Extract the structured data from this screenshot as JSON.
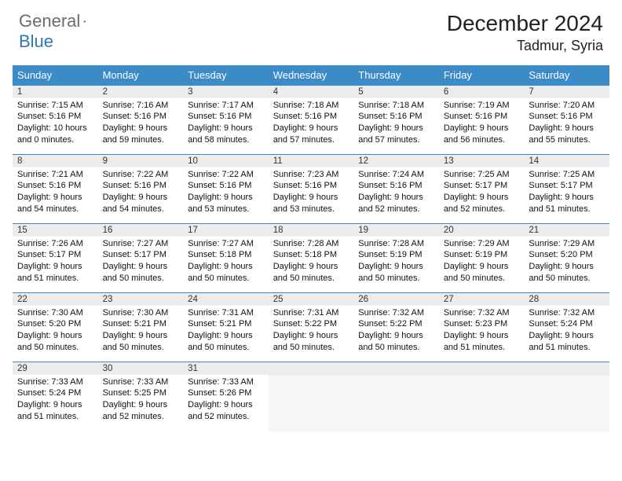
{
  "brand": {
    "general": "General",
    "blue": "Blue"
  },
  "title": "December 2024",
  "location": "Tadmur, Syria",
  "colors": {
    "header_bg": "#3b8bc9",
    "header_text": "#ffffff",
    "rule": "#3b8bc9",
    "daynum_bg": "#ececec",
    "logo_gray": "#6b6b6b",
    "logo_blue": "#2f77b5",
    "empty_bg": "#f6f6f6"
  },
  "weekdays": [
    "Sunday",
    "Monday",
    "Tuesday",
    "Wednesday",
    "Thursday",
    "Friday",
    "Saturday"
  ],
  "weeks": [
    [
      {
        "n": "1",
        "sunrise": "7:15 AM",
        "sunset": "5:16 PM",
        "dl": "10 hours and 0 minutes."
      },
      {
        "n": "2",
        "sunrise": "7:16 AM",
        "sunset": "5:16 PM",
        "dl": "9 hours and 59 minutes."
      },
      {
        "n": "3",
        "sunrise": "7:17 AM",
        "sunset": "5:16 PM",
        "dl": "9 hours and 58 minutes."
      },
      {
        "n": "4",
        "sunrise": "7:18 AM",
        "sunset": "5:16 PM",
        "dl": "9 hours and 57 minutes."
      },
      {
        "n": "5",
        "sunrise": "7:18 AM",
        "sunset": "5:16 PM",
        "dl": "9 hours and 57 minutes."
      },
      {
        "n": "6",
        "sunrise": "7:19 AM",
        "sunset": "5:16 PM",
        "dl": "9 hours and 56 minutes."
      },
      {
        "n": "7",
        "sunrise": "7:20 AM",
        "sunset": "5:16 PM",
        "dl": "9 hours and 55 minutes."
      }
    ],
    [
      {
        "n": "8",
        "sunrise": "7:21 AM",
        "sunset": "5:16 PM",
        "dl": "9 hours and 54 minutes."
      },
      {
        "n": "9",
        "sunrise": "7:22 AM",
        "sunset": "5:16 PM",
        "dl": "9 hours and 54 minutes."
      },
      {
        "n": "10",
        "sunrise": "7:22 AM",
        "sunset": "5:16 PM",
        "dl": "9 hours and 53 minutes."
      },
      {
        "n": "11",
        "sunrise": "7:23 AM",
        "sunset": "5:16 PM",
        "dl": "9 hours and 53 minutes."
      },
      {
        "n": "12",
        "sunrise": "7:24 AM",
        "sunset": "5:16 PM",
        "dl": "9 hours and 52 minutes."
      },
      {
        "n": "13",
        "sunrise": "7:25 AM",
        "sunset": "5:17 PM",
        "dl": "9 hours and 52 minutes."
      },
      {
        "n": "14",
        "sunrise": "7:25 AM",
        "sunset": "5:17 PM",
        "dl": "9 hours and 51 minutes."
      }
    ],
    [
      {
        "n": "15",
        "sunrise": "7:26 AM",
        "sunset": "5:17 PM",
        "dl": "9 hours and 51 minutes."
      },
      {
        "n": "16",
        "sunrise": "7:27 AM",
        "sunset": "5:17 PM",
        "dl": "9 hours and 50 minutes."
      },
      {
        "n": "17",
        "sunrise": "7:27 AM",
        "sunset": "5:18 PM",
        "dl": "9 hours and 50 minutes."
      },
      {
        "n": "18",
        "sunrise": "7:28 AM",
        "sunset": "5:18 PM",
        "dl": "9 hours and 50 minutes."
      },
      {
        "n": "19",
        "sunrise": "7:28 AM",
        "sunset": "5:19 PM",
        "dl": "9 hours and 50 minutes."
      },
      {
        "n": "20",
        "sunrise": "7:29 AM",
        "sunset": "5:19 PM",
        "dl": "9 hours and 50 minutes."
      },
      {
        "n": "21",
        "sunrise": "7:29 AM",
        "sunset": "5:20 PM",
        "dl": "9 hours and 50 minutes."
      }
    ],
    [
      {
        "n": "22",
        "sunrise": "7:30 AM",
        "sunset": "5:20 PM",
        "dl": "9 hours and 50 minutes."
      },
      {
        "n": "23",
        "sunrise": "7:30 AM",
        "sunset": "5:21 PM",
        "dl": "9 hours and 50 minutes."
      },
      {
        "n": "24",
        "sunrise": "7:31 AM",
        "sunset": "5:21 PM",
        "dl": "9 hours and 50 minutes."
      },
      {
        "n": "25",
        "sunrise": "7:31 AM",
        "sunset": "5:22 PM",
        "dl": "9 hours and 50 minutes."
      },
      {
        "n": "26",
        "sunrise": "7:32 AM",
        "sunset": "5:22 PM",
        "dl": "9 hours and 50 minutes."
      },
      {
        "n": "27",
        "sunrise": "7:32 AM",
        "sunset": "5:23 PM",
        "dl": "9 hours and 51 minutes."
      },
      {
        "n": "28",
        "sunrise": "7:32 AM",
        "sunset": "5:24 PM",
        "dl": "9 hours and 51 minutes."
      }
    ],
    [
      {
        "n": "29",
        "sunrise": "7:33 AM",
        "sunset": "5:24 PM",
        "dl": "9 hours and 51 minutes."
      },
      {
        "n": "30",
        "sunrise": "7:33 AM",
        "sunset": "5:25 PM",
        "dl": "9 hours and 52 minutes."
      },
      {
        "n": "31",
        "sunrise": "7:33 AM",
        "sunset": "5:26 PM",
        "dl": "9 hours and 52 minutes."
      },
      null,
      null,
      null,
      null
    ]
  ],
  "labels": {
    "sunrise": "Sunrise:",
    "sunset": "Sunset:",
    "daylight": "Daylight:"
  }
}
